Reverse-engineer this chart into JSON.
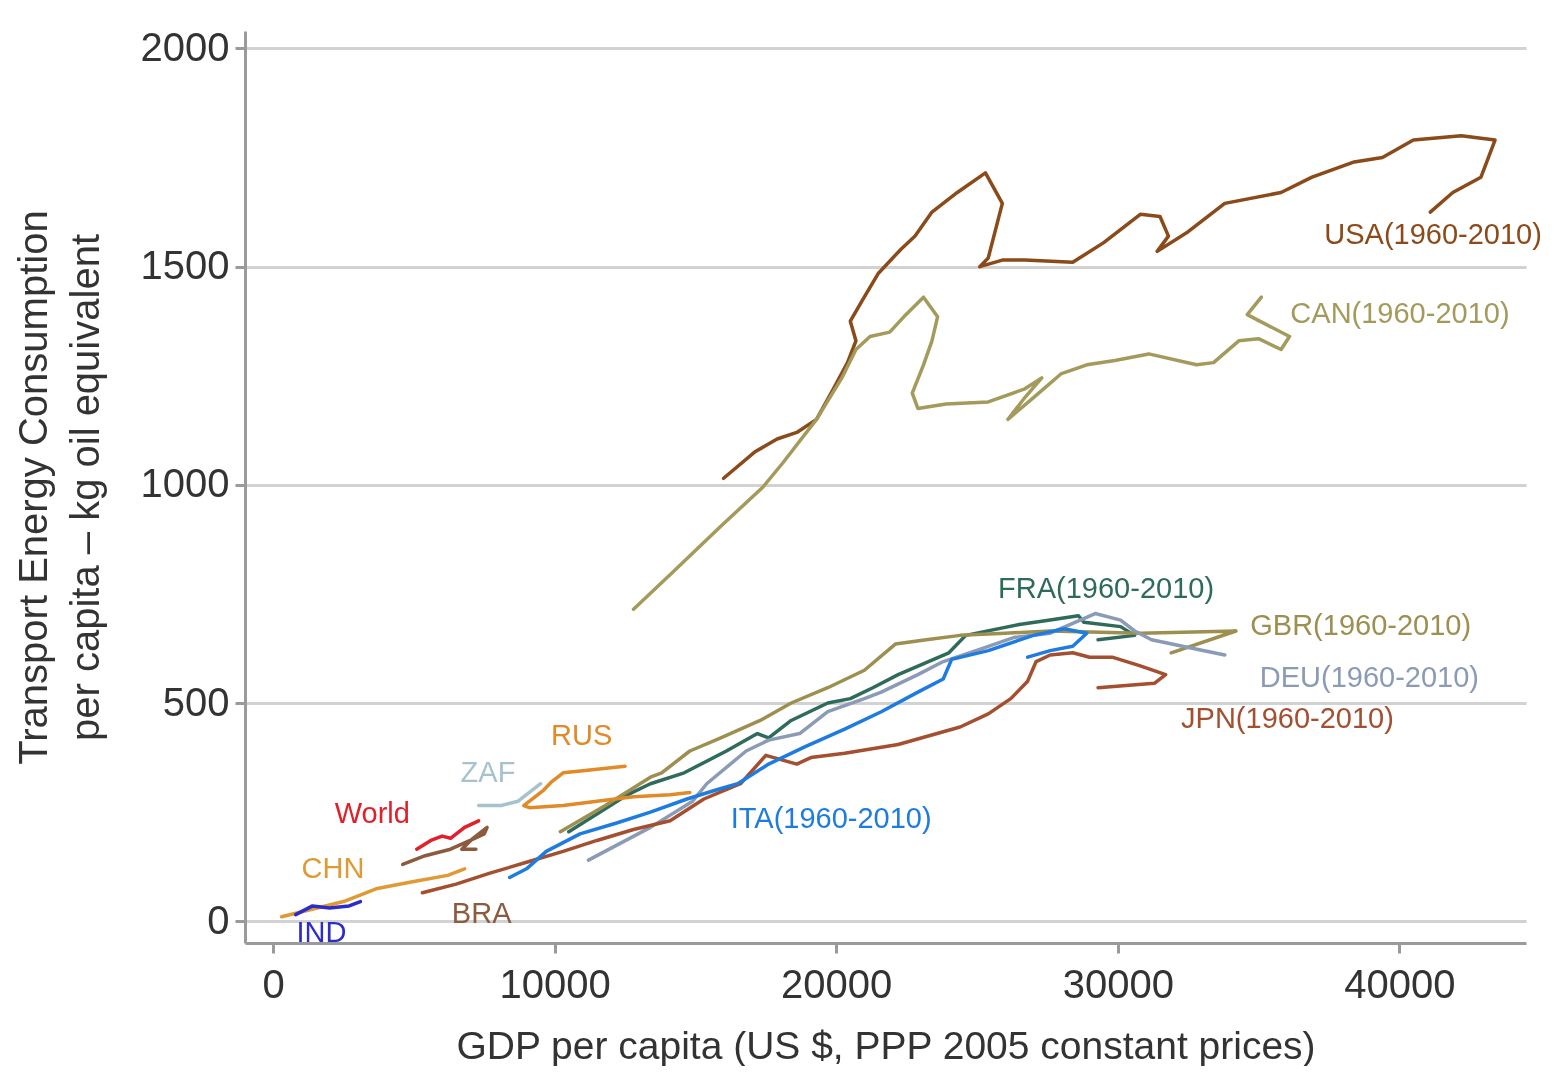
{
  "chart_data": {
    "type": "line",
    "xlabel": "GDP per capita (US $, PPP 2005 constant prices)",
    "ylabel": "Transport Energy Consumption\nper capita – kg oil equivalent",
    "xlim": [
      -1000,
      44500
    ],
    "ylim": [
      -50,
      2040
    ],
    "xticks": [
      0,
      10000,
      20000,
      30000,
      40000
    ],
    "yticks": [
      0,
      500,
      1000,
      1500,
      2000
    ],
    "grid": "y",
    "series": [
      {
        "name": "USA(1960-2010)",
        "color": "#8b4a1a",
        "x": [
          16000,
          17100,
          17900,
          18600,
          19300,
          19900,
          20400,
          20700,
          20500,
          20900,
          21500,
          22300,
          22800,
          23400,
          24300,
          25300,
          25900,
          25400,
          25100,
          25900,
          26700,
          28400,
          29500,
          30800,
          31500,
          31800,
          31400,
          32500,
          33800,
          35800,
          36900,
          38400,
          39400,
          40500,
          42200,
          43400,
          42900,
          41900,
          41100
        ],
        "values": [
          1015,
          1075,
          1105,
          1120,
          1150,
          1220,
          1280,
          1330,
          1375,
          1420,
          1485,
          1540,
          1570,
          1625,
          1670,
          1715,
          1645,
          1520,
          1500,
          1515,
          1515,
          1510,
          1555,
          1620,
          1615,
          1570,
          1535,
          1580,
          1645,
          1670,
          1705,
          1740,
          1750,
          1790,
          1800,
          1790,
          1705,
          1670,
          1625
        ]
      },
      {
        "name": "CAN(1960-2010)",
        "color": "#a39a5c",
        "x": [
          12800,
          14200,
          15900,
          17400,
          18100,
          19300,
          20200,
          20700,
          21200,
          21900,
          22400,
          23100,
          23600,
          23400,
          23100,
          22700,
          22900,
          23900,
          25400,
          26700,
          27300,
          26700,
          26100,
          27100,
          28000,
          28900,
          29900,
          31100,
          32800,
          33400,
          34300,
          35000,
          35800,
          36100,
          34600,
          35100
        ],
        "values": [
          715,
          800,
          905,
          995,
          1050,
          1150,
          1245,
          1310,
          1340,
          1350,
          1385,
          1430,
          1385,
          1330,
          1275,
          1210,
          1175,
          1185,
          1190,
          1220,
          1245,
          1200,
          1150,
          1205,
          1255,
          1275,
          1285,
          1300,
          1275,
          1280,
          1330,
          1335,
          1310,
          1340,
          1390,
          1430
        ]
      },
      {
        "name": "FRA(1960-2010)",
        "color": "#2e6b5a",
        "x": [
          10500,
          12600,
          13400,
          14600,
          16100,
          17200,
          17600,
          18400,
          19700,
          20500,
          21300,
          22200,
          24000,
          24600,
          26500,
          27600,
          28600,
          28800,
          30100,
          30600,
          29300
        ],
        "values": [
          205,
          290,
          315,
          340,
          390,
          430,
          420,
          460,
          500,
          510,
          535,
          565,
          615,
          655,
          680,
          690,
          700,
          685,
          675,
          655,
          645
        ]
      },
      {
        "name": "GBR(1960-2010)",
        "color": "#9c8f50",
        "x": [
          10200,
          11800,
          13400,
          13800,
          14800,
          15900,
          17300,
          18400,
          19700,
          21000,
          22100,
          23200,
          24400,
          26000,
          27600,
          30800,
          34200,
          31900
        ],
        "values": [
          205,
          265,
          330,
          340,
          390,
          420,
          460,
          500,
          535,
          575,
          635,
          645,
          655,
          660,
          665,
          660,
          665,
          615
        ]
      },
      {
        "name": "DEU(1960-2010)",
        "color": "#8b9bb5",
        "x": [
          11200,
          13400,
          14900,
          15400,
          16800,
          17600,
          18700,
          19700,
          21000,
          21600,
          22900,
          23800,
          25200,
          26300,
          27600,
          29200,
          30100,
          30600,
          31200,
          32300,
          33800
        ],
        "values": [
          140,
          215,
          275,
          315,
          390,
          415,
          430,
          480,
          510,
          525,
          565,
          595,
          625,
          650,
          660,
          705,
          690,
          665,
          645,
          630,
          610
        ]
      },
      {
        "name": "JPN(1960-2010)",
        "color": "#a34f30",
        "x": [
          5300,
          6500,
          7700,
          9000,
          10300,
          11500,
          12800,
          14100,
          15300,
          16600,
          17500,
          18600,
          19100,
          20300,
          22200,
          24400,
          25400,
          26200,
          26800,
          27100,
          27600,
          28400,
          29000,
          29800,
          30800,
          31700,
          31300,
          30300,
          29300
        ],
        "values": [
          65,
          85,
          110,
          135,
          160,
          185,
          210,
          230,
          280,
          315,
          380,
          360,
          375,
          385,
          405,
          445,
          475,
          510,
          550,
          595,
          610,
          615,
          605,
          605,
          585,
          565,
          545,
          540,
          535
        ]
      },
      {
        "name": "ITA(1960-2010)",
        "color": "#1e7ce0",
        "x": [
          8400,
          9000,
          9700,
          10900,
          12200,
          13400,
          14700,
          15700,
          16500,
          17600,
          18900,
          20300,
          21600,
          22900,
          23800,
          24100,
          25400,
          27000,
          28100,
          28900,
          28400,
          27600,
          26800
        ],
        "values": [
          100,
          120,
          160,
          200,
          225,
          250,
          280,
          300,
          315,
          360,
          400,
          440,
          480,
          525,
          555,
          600,
          620,
          655,
          670,
          660,
          630,
          620,
          605
        ]
      },
      {
        "name": "RUS",
        "color": "#e08a28",
        "x": [
          14800,
          14100,
          12800,
          11500,
          10300,
          9100,
          8900,
          9600,
          9900,
          10300,
          11000,
          12500
        ],
        "values": [
          295,
          290,
          285,
          275,
          265,
          260,
          265,
          300,
          320,
          340,
          345,
          355
        ]
      },
      {
        "name": "ZAF",
        "color": "#a6c2cc",
        "x": [
          7300,
          8100,
          8700,
          9500
        ],
        "values": [
          265,
          265,
          275,
          315
        ]
      },
      {
        "name": "World",
        "color": "#e0202a",
        "x": [
          5100,
          5600,
          6000,
          6300,
          6800,
          7300
        ],
        "values": [
          165,
          185,
          195,
          190,
          215,
          230
        ]
      },
      {
        "name": "CHN",
        "color": "#e09a35",
        "x": [
          300,
          2500,
          3700,
          4900,
          6200,
          6800
        ],
        "values": [
          10,
          45,
          75,
          90,
          105,
          120
        ]
      },
      {
        "name": "IND",
        "color": "#2c2cc8",
        "x": [
          800,
          1400,
          2000,
          2700,
          3100
        ],
        "values": [
          15,
          35,
          30,
          35,
          45
        ]
      },
      {
        "name": "BRA",
        "color": "#8c5a3c",
        "x": [
          4600,
          5400,
          6300,
          7000,
          7500,
          7600,
          7100,
          6700,
          7200
        ],
        "values": [
          130,
          150,
          165,
          185,
          200,
          215,
          190,
          165,
          165
        ]
      }
    ]
  }
}
